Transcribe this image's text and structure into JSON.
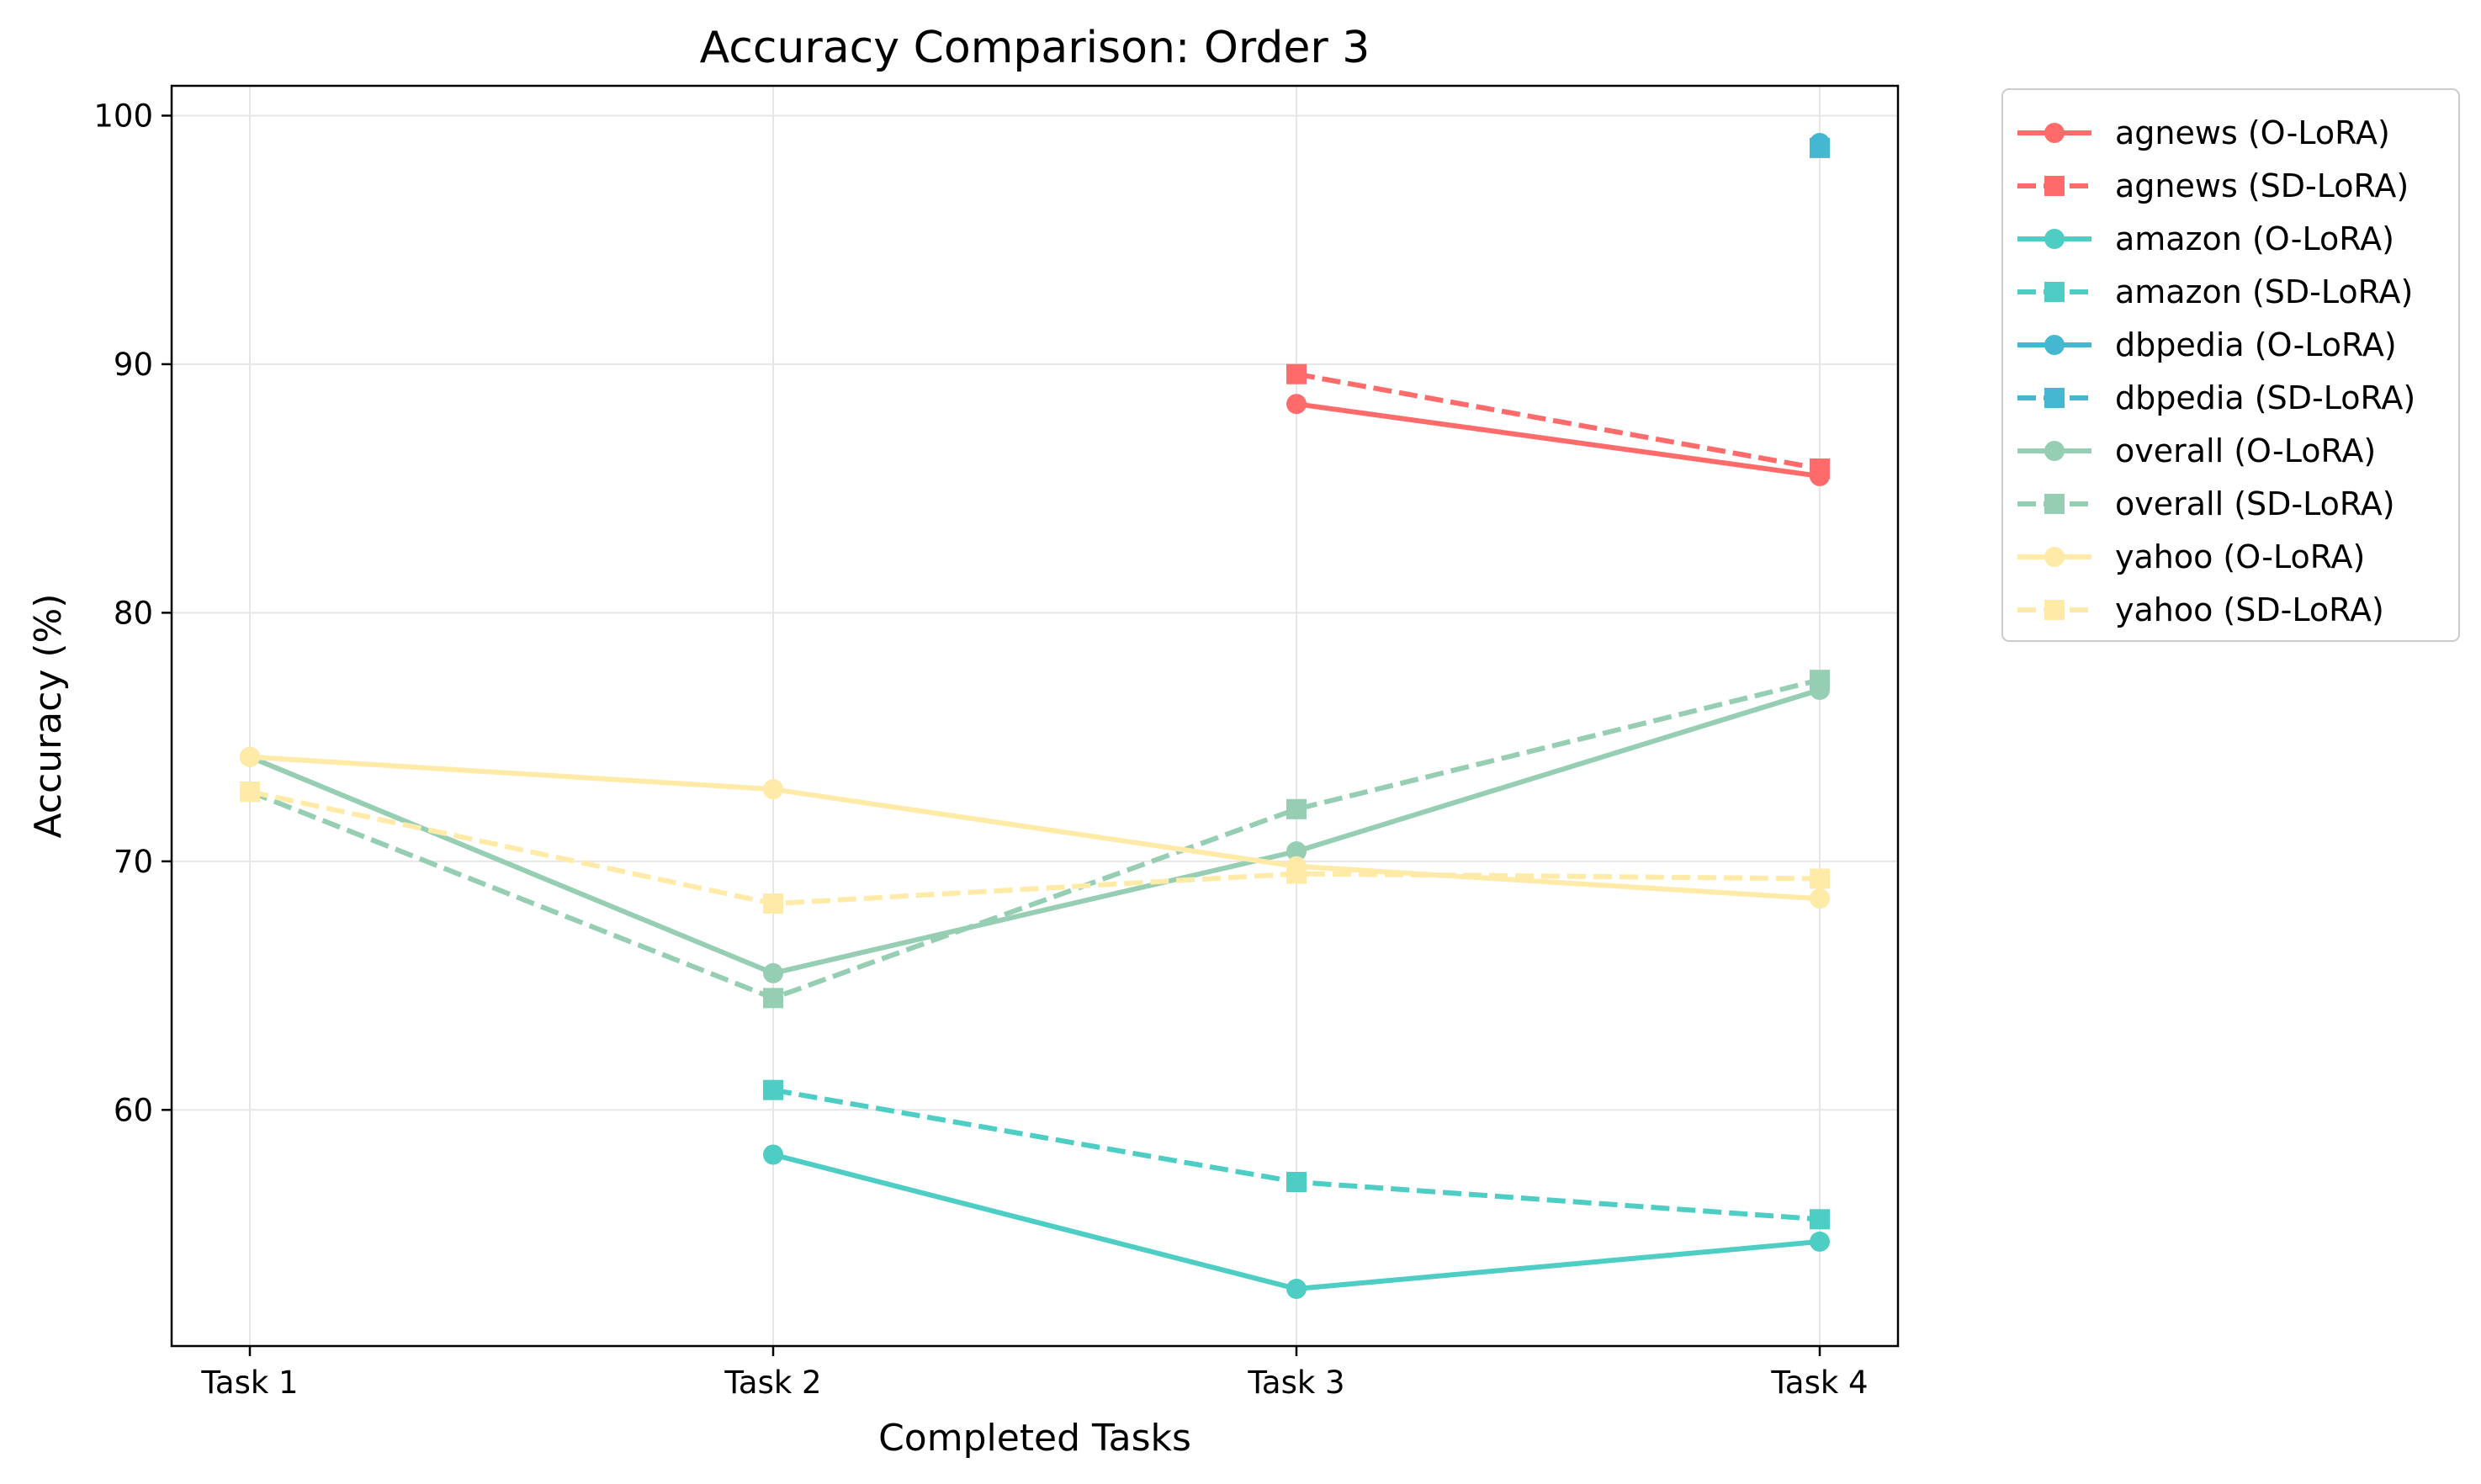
{
  "chart_data": {
    "type": "line",
    "title": "Accuracy Comparison: Order 3",
    "xlabel": "Completed Tasks",
    "ylabel": "Accuracy (%)",
    "categories": [
      "Task 1",
      "Task 2",
      "Task 3",
      "Task 4"
    ],
    "ylim": [
      50.5,
      101.2
    ],
    "yticks": [
      "60",
      "70",
      "80",
      "90",
      "100"
    ],
    "grid": true,
    "legend_position": "outside-right",
    "series": [
      {
        "name": "agnews (O-LoRA)",
        "color": "#FF6B6B",
        "style": "solid",
        "marker": "circle",
        "values": [
          null,
          null,
          88.4,
          85.5
        ]
      },
      {
        "name": "agnews (SD-LoRA)",
        "color": "#FF6B6B",
        "style": "dashed",
        "marker": "square",
        "values": [
          null,
          null,
          89.6,
          85.8
        ]
      },
      {
        "name": "amazon (O-LoRA)",
        "color": "#4ECDC4",
        "style": "solid",
        "marker": "circle",
        "values": [
          null,
          58.2,
          52.8,
          54.7
        ]
      },
      {
        "name": "amazon (SD-LoRA)",
        "color": "#4ECDC4",
        "style": "dashed",
        "marker": "square",
        "values": [
          null,
          60.8,
          57.1,
          55.6
        ]
      },
      {
        "name": "dbpedia (O-LoRA)",
        "color": "#45B7D1",
        "style": "solid",
        "marker": "circle",
        "values": [
          null,
          null,
          null,
          98.9
        ]
      },
      {
        "name": "dbpedia (SD-LoRA)",
        "color": "#45B7D1",
        "style": "dashed",
        "marker": "square",
        "values": [
          null,
          null,
          null,
          98.7
        ]
      },
      {
        "name": "overall (O-LoRA)",
        "color": "#96CEB4",
        "style": "solid",
        "marker": "circle",
        "values": [
          74.2,
          65.5,
          70.4,
          76.9
        ]
      },
      {
        "name": "overall (SD-LoRA)",
        "color": "#96CEB4",
        "style": "dashed",
        "marker": "square",
        "values": [
          72.8,
          64.5,
          72.1,
          77.3
        ]
      },
      {
        "name": "yahoo (O-LoRA)",
        "color": "#FFEAA7",
        "style": "solid",
        "marker": "circle",
        "values": [
          74.2,
          72.9,
          69.8,
          68.5
        ]
      },
      {
        "name": "yahoo (SD-LoRA)",
        "color": "#FFEAA7",
        "style": "dashed",
        "marker": "square",
        "values": [
          72.8,
          68.3,
          69.5,
          69.3
        ]
      }
    ]
  }
}
